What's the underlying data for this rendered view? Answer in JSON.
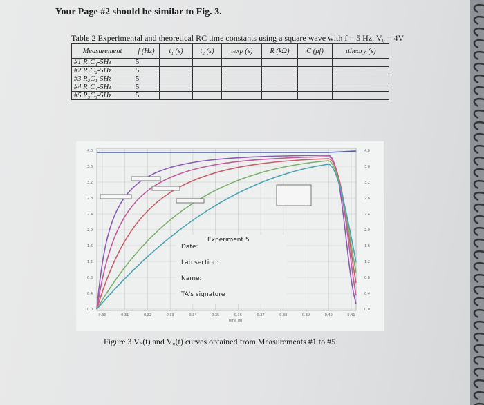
{
  "heading": "Your Page #2 should be similar to Fig. 3.",
  "table": {
    "caption": "Table 2 Experimental and theoretical RC time constants using a square wave with f = 5 Hz, V₀ = 4V",
    "headers": [
      "Measurement",
      "f (Hz)",
      "t₁ (s)",
      "t₂ (s)",
      "τexp (s)",
      "R (kΩ)",
      "C (μf)",
      "τtheory (s)"
    ],
    "rows": [
      [
        "#1 R₁C₁-5Hz",
        5
      ],
      [
        "#2 R₁C₂-5Hz",
        5
      ],
      [
        "#3 R₂C₁-5Hz",
        5
      ],
      [
        "#4 R₁C₃-5Hz",
        5
      ],
      [
        "#5 R₃C₃-5Hz",
        5
      ]
    ]
  },
  "figure": {
    "title": "Experiment 5",
    "fields": [
      "Date:",
      "Lab section:",
      "Name:",
      "TA's signature"
    ],
    "yticks": [
      "4.0",
      "3.6",
      "3.2",
      "2.8",
      "2.4",
      "2.0",
      "1.6",
      "1.2",
      "0.8",
      "0.4",
      "0.0"
    ],
    "xticks": [
      "0.30",
      "0.31",
      "0.32",
      "0.33",
      "0.34",
      "0.35",
      "0.36",
      "0.37",
      "0.38",
      "0.39",
      "0.40",
      "0.41"
    ],
    "xlabel": "Time (s)",
    "caption": "Figure 3   Vₛ(t) and V꜀(t) curves obtained from Measurements #1 to #5"
  }
}
